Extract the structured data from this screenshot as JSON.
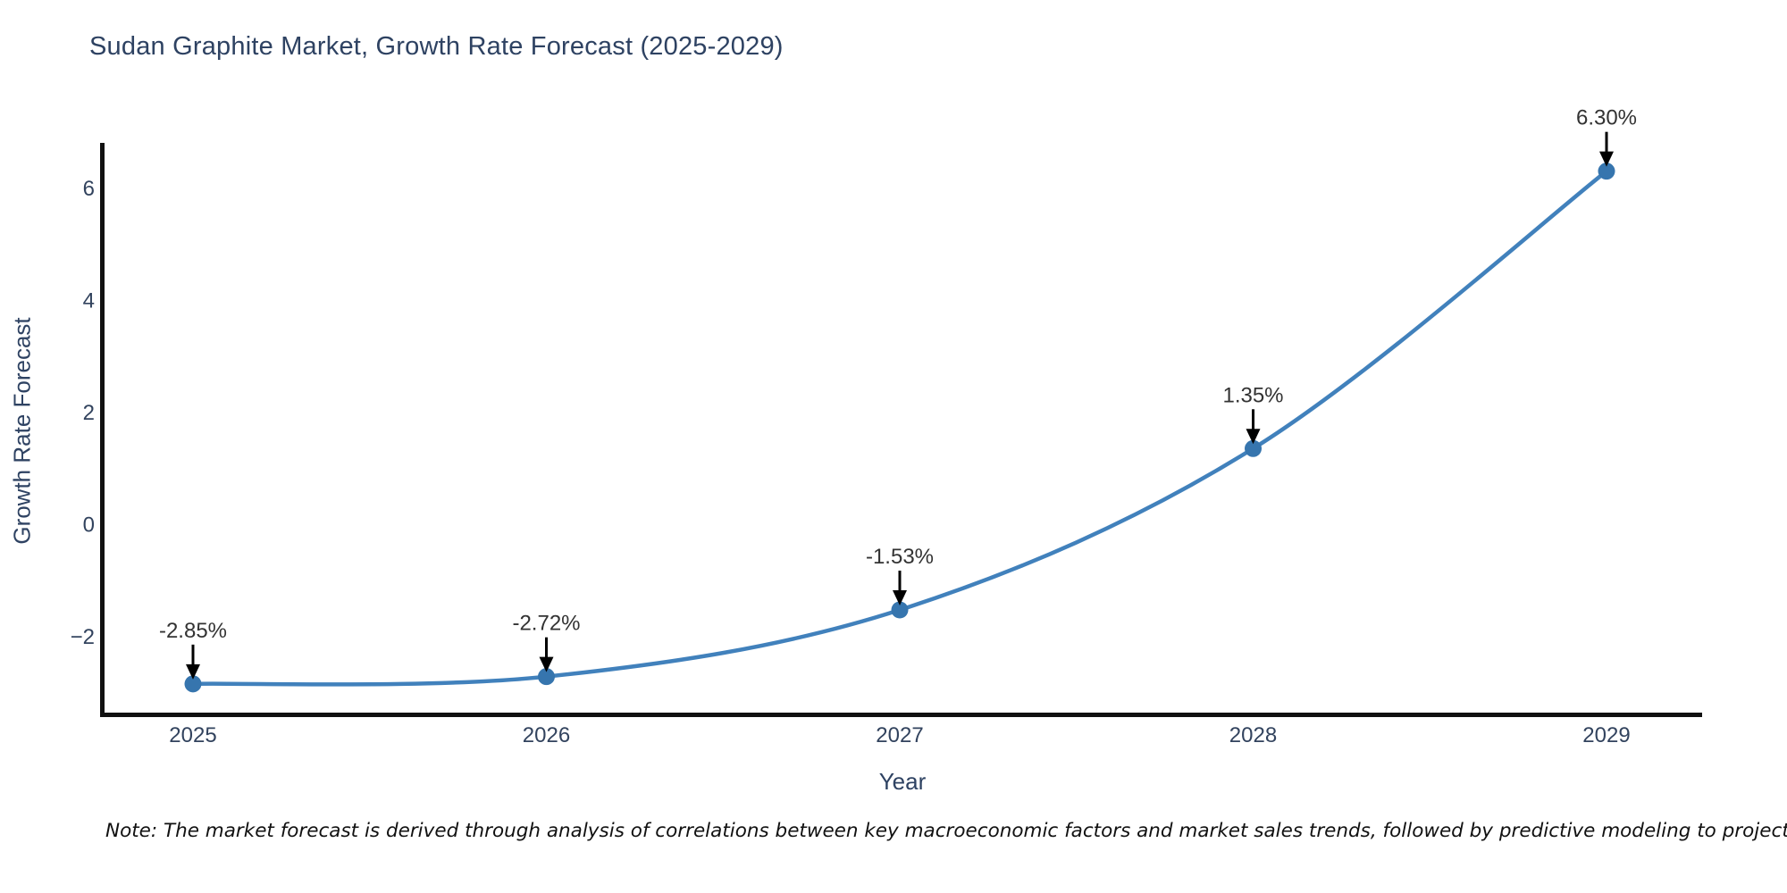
{
  "chart_data": {
    "type": "line",
    "title": "Sudan Graphite Market, Growth Rate Forecast (2025-2029)",
    "xlabel": "Year",
    "ylabel": "Growth Rate Forecast",
    "x": [
      2025,
      2026,
      2027,
      2028,
      2029
    ],
    "series": [
      {
        "name": "Growth Rate Forecast",
        "values": [
          -2.85,
          -2.72,
          -1.53,
          1.35,
          6.3
        ],
        "point_labels": [
          "-2.85%",
          "-2.72%",
          "-1.53%",
          "1.35%",
          "6.30%"
        ]
      }
    ],
    "x_tick_labels": [
      "2025",
      "2026",
      "2027",
      "2028",
      "2029"
    ],
    "y_tick_values": [
      6,
      4,
      2,
      0,
      -2
    ],
    "y_tick_labels": [
      "6",
      "4",
      "2",
      "0",
      "−2"
    ],
    "ylim": [
      -3.4,
      6.8
    ],
    "line_shape": "spline",
    "grid": false,
    "legend_position": "none",
    "colors": {
      "line": "#4181bc",
      "marker": "#3675ae",
      "axis": "#111111",
      "title_text": "#2e4262",
      "tick_text": "#32435e",
      "annotation_text": "#333333",
      "arrow": "#000000",
      "background": "#ffffff"
    }
  },
  "note": {
    "text": "Note: The market forecast is derived through analysis of correlations between key macroeconomic factors and market sales trends, followed by predictive modeling to project future sales"
  }
}
